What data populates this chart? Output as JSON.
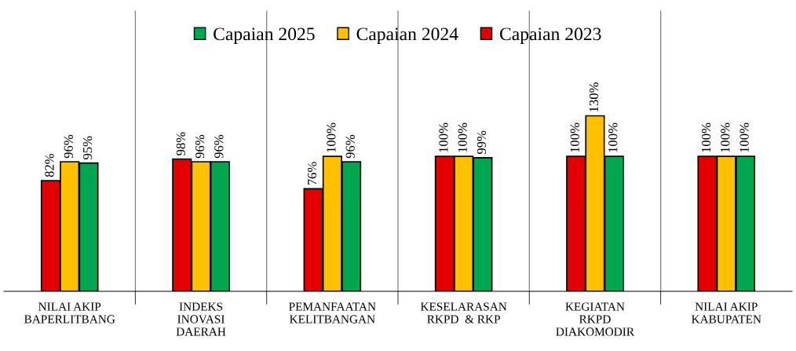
{
  "chart_data": {
    "type": "bar",
    "categories": [
      "NILAI AKIP\nBAPERLITBANG",
      "INDEKS\nINOVASI\nDAERAH",
      "PEMANFAATAN\nKELITBANGAN",
      "KESELARASAN\nRKPD  & RKP",
      "KEGIATAN\nRKPD\nDIAKOMODIR",
      "NILAI AKIP\nKABUPATEN"
    ],
    "series": [
      {
        "name": "Capaian 2025",
        "color": "#00a650",
        "values": [
          95,
          96,
          96,
          99,
          100,
          100
        ],
        "value_labels": [
          "95%",
          "96%",
          "96%",
          "99%",
          "100%",
          "100%"
        ]
      },
      {
        "name": "Capaian 2024",
        "color": "#ffc000",
        "values": [
          96,
          96,
          100,
          100,
          130,
          100
        ],
        "value_labels": [
          "96%",
          "96%",
          "100%",
          "100%",
          "130%",
          "100%"
        ]
      },
      {
        "name": "Capaian 2023",
        "color": "#e50000",
        "values": [
          82,
          98,
          76,
          100,
          100,
          100
        ],
        "value_labels": [
          "82%",
          "98%",
          "76%",
          "100%",
          "100%",
          "100%"
        ]
      }
    ],
    "legend": "top",
    "grid": "x"
  }
}
